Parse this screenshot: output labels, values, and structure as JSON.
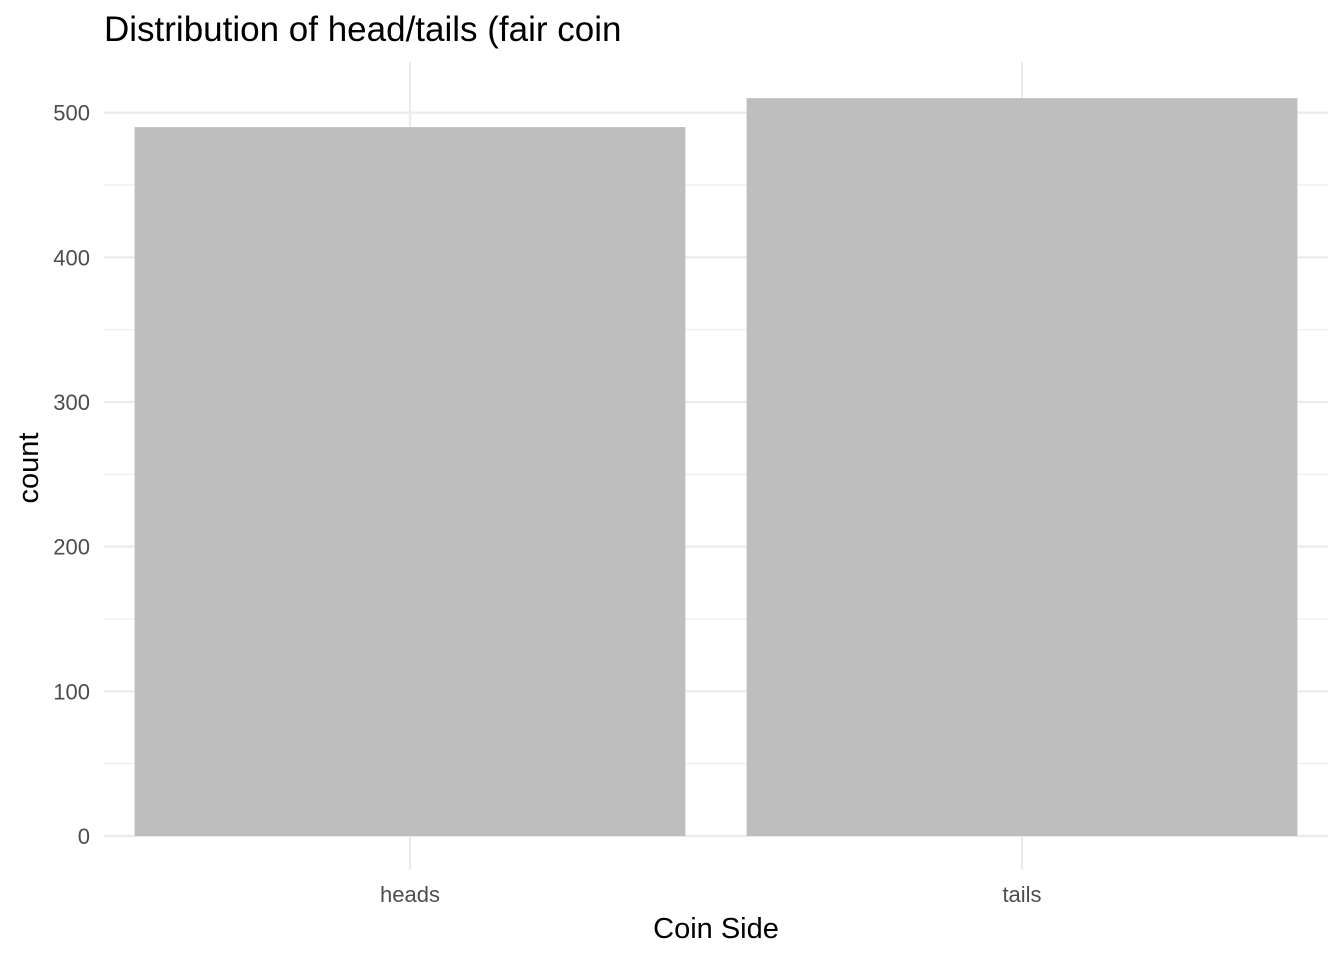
{
  "chart_data": {
    "type": "bar",
    "title": "Distribution of head/tails (fair coin",
    "xlabel": "Coin Side",
    "ylabel": "count",
    "categories": [
      "heads",
      "tails"
    ],
    "values": [
      490,
      510
    ],
    "ylim": [
      0,
      535
    ],
    "yticks": [
      0,
      100,
      200,
      300,
      400,
      500
    ],
    "yticks_minor": [
      50,
      150,
      250,
      350,
      450
    ],
    "yticks_labels": [
      "0",
      "100",
      "200",
      "300",
      "400",
      "500"
    ],
    "grid": true,
    "legend": "none",
    "bar_color": "#bebebe",
    "grid_color": "#ebebeb",
    "background_color": "#ffffff"
  }
}
